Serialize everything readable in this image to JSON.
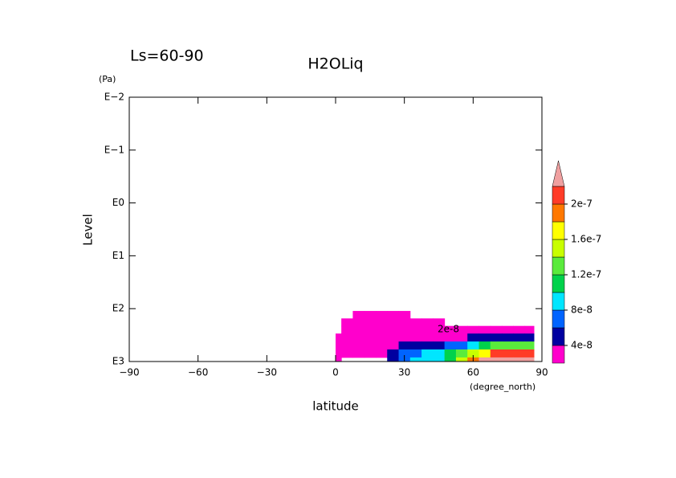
{
  "chart_data": {
    "type": "contour",
    "title": "H2OLiq",
    "subtitle": "Ls=60-90",
    "xlabel": "latitude",
    "xunit": "(degree_north)",
    "ylabel": "Level",
    "yunit": "(Pa)",
    "xlim": [
      -90,
      90
    ],
    "xticks": [
      {
        "value": -90,
        "label": "−90"
      },
      {
        "value": -60,
        "label": "−60"
      },
      {
        "value": -30,
        "label": "−30"
      },
      0,
      30,
      60,
      90
    ],
    "ylim": [
      0.01,
      1000
    ],
    "ylog": true,
    "yreverse": true,
    "yticks": [
      {
        "value": 0.01,
        "label": "E−2"
      },
      {
        "value": 0.1,
        "label": "E−1"
      },
      {
        "value": 1,
        "label": "E0"
      },
      {
        "value": 10,
        "label": "E1"
      },
      {
        "value": 100,
        "label": "E2"
      },
      {
        "value": 1000,
        "label": "E3"
      }
    ],
    "x": [
      0,
      5,
      10,
      15,
      20,
      25,
      30,
      35,
      40,
      45,
      50,
      55,
      60,
      65,
      70,
      75,
      80,
      85
    ],
    "y": [
      130,
      180,
      250,
      350,
      500,
      700,
      1000
    ],
    "z": [
      [
        0,
        0,
        3e-08,
        3e-08,
        3e-08,
        3e-08,
        3e-08,
        0,
        0,
        0,
        0,
        0,
        0,
        0,
        0,
        0,
        0,
        0
      ],
      [
        0,
        3e-08,
        3e-08,
        3e-08,
        3e-08,
        3e-08,
        3e-08,
        3e-08,
        3e-08,
        3e-08,
        0,
        0,
        0,
        0,
        0,
        0,
        0,
        0
      ],
      [
        0,
        3e-08,
        3e-08,
        3e-08,
        3e-08,
        3e-08,
        3e-08,
        3e-08,
        3e-08,
        3e-08,
        3e-08,
        3e-08,
        3e-08,
        3e-08,
        3e-08,
        3e-08,
        3e-08,
        3e-08
      ],
      [
        3e-08,
        3e-08,
        3e-08,
        3e-08,
        3e-08,
        3e-08,
        3e-08,
        3e-08,
        3e-08,
        3e-08,
        3e-08,
        3e-08,
        5e-08,
        5e-08,
        5e-08,
        5e-08,
        5e-08,
        5e-08
      ],
      [
        3e-08,
        3e-08,
        3e-08,
        3e-08,
        3e-08,
        3e-08,
        5e-08,
        5e-08,
        5e-08,
        5e-08,
        7e-08,
        7e-08,
        9e-08,
        1.1e-07,
        1.3e-07,
        1.3e-07,
        1.3e-07,
        1.3e-07
      ],
      [
        3e-08,
        3e-08,
        3e-08,
        3e-08,
        3e-08,
        5e-08,
        7e-08,
        7e-08,
        9e-08,
        9e-08,
        1.1e-07,
        1.3e-07,
        1.5e-07,
        1.7e-07,
        2.1e-07,
        2.1e-07,
        2.1e-07,
        2.1e-07
      ],
      [
        3e-08,
        0,
        0,
        0,
        0,
        5e-08,
        7e-08,
        9e-08,
        9e-08,
        9e-08,
        1.1e-07,
        1.5e-07,
        1.9e-07,
        2.3e-07,
        2.3e-07,
        2.3e-07,
        2.3e-07,
        2.3e-07
      ]
    ],
    "levels": [
      2e-08,
      4e-08,
      6e-08,
      8e-08,
      1e-07,
      1.2e-07,
      1.4e-07,
      1.6e-07,
      1.8e-07,
      2e-07,
      2.2e-07
    ],
    "colors": [
      "#ff00cc",
      "#0000a0",
      "#0064ff",
      "#00e6ff",
      "#00d24b",
      "#5aeb3c",
      "#c8ff00",
      "#ffff00",
      "#ff7800",
      "#ff3c28",
      "#f0a0a0"
    ],
    "colorbar_ticks": [
      {
        "value": 4e-08,
        "label": "4e-8"
      },
      {
        "value": 8e-08,
        "label": "8e-8"
      },
      {
        "value": 1.2e-07,
        "label": "1.2e-7"
      },
      {
        "value": 1.6e-07,
        "label": "1.6e-7"
      },
      {
        "value": 2e-07,
        "label": "2e-7"
      }
    ],
    "contour_labels": [
      {
        "value": 2e-08,
        "label": "2e-8"
      }
    ]
  }
}
